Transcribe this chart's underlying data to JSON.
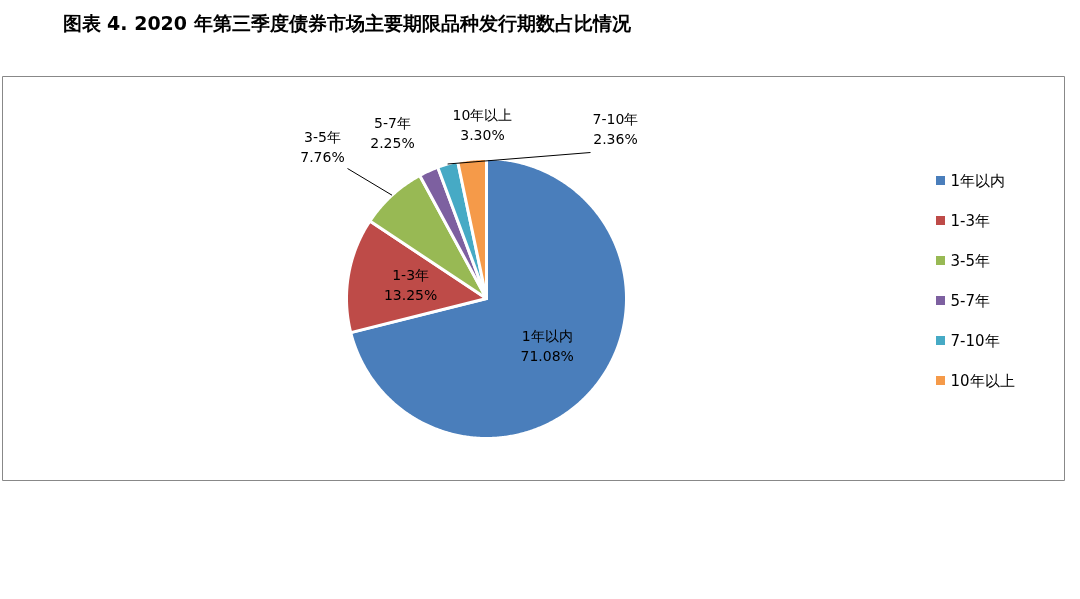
{
  "chart_data": {
    "type": "pie",
    "title": "图表 4. 2020 年第三季度债券市场主要期限品种发行期数占比情况",
    "categories": [
      "1年以内",
      "1-3年",
      "3-5年",
      "5-7年",
      "7-10年",
      "10年以上"
    ],
    "values": [
      71.08,
      13.25,
      7.76,
      2.25,
      2.36,
      3.3
    ],
    "value_labels": [
      "71.08%",
      "13.25%",
      "7.76%",
      "2.25%",
      "2.36%",
      "3.30%"
    ],
    "colors": [
      "#4a7ebb",
      "#be4b48",
      "#98b954",
      "#7d60a0",
      "#46aac5",
      "#f59a49"
    ],
    "legend": "right"
  }
}
